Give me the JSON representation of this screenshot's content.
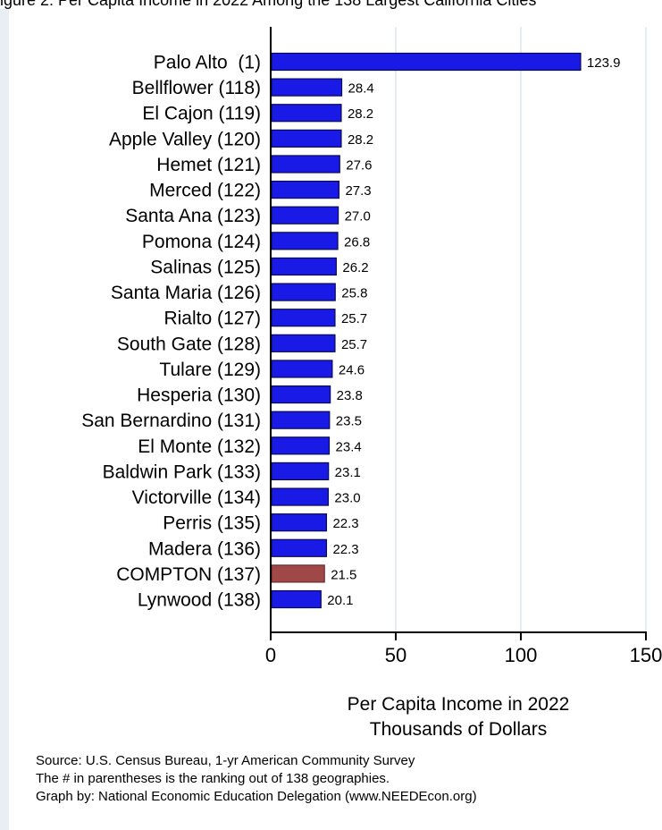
{
  "header_fragment": "igure 2: Per Capita Income in 2022 Among the 138 Largest California Cities",
  "chart_data": {
    "type": "bar",
    "orientation": "horizontal",
    "categories": [
      "Palo Alto  (1)",
      "Bellflower (118)",
      "El Cajon (119)",
      "Apple Valley (120)",
      "Hemet (121)",
      "Merced (122)",
      "Santa Ana (123)",
      "Pomona (124)",
      "Salinas (125)",
      "Santa Maria (126)",
      "Rialto (127)",
      "South Gate (128)",
      "Tulare (129)",
      "Hesperia (130)",
      "San Bernardino (131)",
      "El Monte (132)",
      "Baldwin Park (133)",
      "Victorville (134)",
      "Perris (135)",
      "Madera (136)",
      "COMPTON (137)",
      "Lynwood (138)"
    ],
    "values": [
      123.9,
      28.4,
      28.2,
      28.2,
      27.6,
      27.3,
      27.0,
      26.8,
      26.2,
      25.8,
      25.7,
      25.7,
      24.6,
      23.8,
      23.5,
      23.4,
      23.1,
      23.0,
      22.3,
      22.3,
      21.5,
      20.1
    ],
    "value_labels": [
      "123.9",
      "28.4",
      "28.2",
      "28.2",
      "27.6",
      "27.3",
      "27.0",
      "26.8",
      "26.2",
      "25.8",
      "25.7",
      "25.7",
      "24.6",
      "23.8",
      "23.5",
      "23.4",
      "23.1",
      "23.0",
      "22.3",
      "22.3",
      "21.5",
      "20.1"
    ],
    "highlight_index": 20,
    "xlim": [
      0,
      150
    ],
    "xticks": [
      0,
      50,
      100,
      150
    ],
    "xtick_labels": [
      "0",
      "50",
      "100",
      "150"
    ],
    "xlabel_lines": [
      "Per Capita Income in 2022",
      "Thousands of Dollars"
    ],
    "grid": true,
    "colors": {
      "bar": "#1a1ae6",
      "bar_edge": "#0a0a55",
      "highlight": "#a04848",
      "highlight_edge": "#6a2a2a",
      "grid": "#dde6ec"
    }
  },
  "footer": {
    "lines": [
      "Source: U.S. Census Bureau, 1-yr American Community Survey",
      "The # in parentheses is the ranking out of 138 geographies.",
      "Graph by: National Economic Education Delegation (www.NEEDEcon.org)"
    ]
  }
}
